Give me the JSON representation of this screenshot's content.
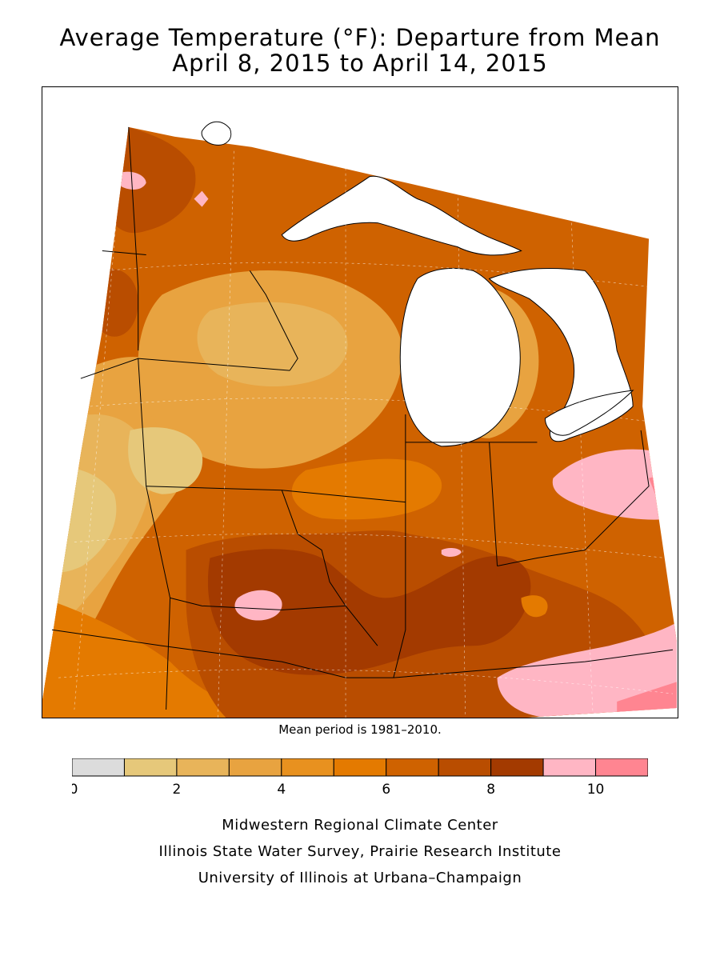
{
  "title_line1": "Average Temperature (°F): Departure from Mean",
  "title_line2": "April 8, 2015 to April 14, 2015",
  "mean_period_note": "Mean period is 1981–2010.",
  "legend": {
    "bins": [
      {
        "from": 0,
        "to": 1,
        "color": "#dcdcdc"
      },
      {
        "from": 1,
        "to": 2,
        "color": "#e6c87a"
      },
      {
        "from": 2,
        "to": 3,
        "color": "#e8b45a"
      },
      {
        "from": 3,
        "to": 4,
        "color": "#e8a340"
      },
      {
        "from": 4,
        "to": 5,
        "color": "#e8911f"
      },
      {
        "from": 5,
        "to": 6,
        "color": "#e47a00"
      },
      {
        "from": 6,
        "to": 7,
        "color": "#cf6200"
      },
      {
        "from": 7,
        "to": 8,
        "color": "#b94d00"
      },
      {
        "from": 8,
        "to": 9,
        "color": "#a33a00"
      },
      {
        "from": 9,
        "to": 10,
        "color": "#ffb6c4"
      },
      {
        "from": 10,
        "to": 11,
        "color": "#ff8591"
      }
    ],
    "tick_labels": [
      "0",
      "2",
      "4",
      "6",
      "8",
      "10"
    ],
    "tick_values": [
      0,
      2,
      4,
      6,
      8,
      10
    ]
  },
  "colors": {
    "lake": "#ffffff",
    "border": "#000000"
  },
  "footer": {
    "line1": "Midwestern Regional Climate Center",
    "line2": "Illinois State Water Survey, Prairie Research Institute",
    "line3": "University of Illinois at Urbana–Champaign"
  }
}
